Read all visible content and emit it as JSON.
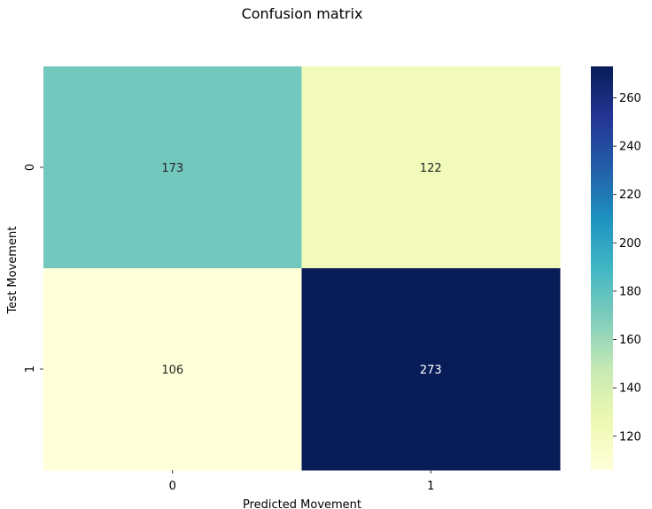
{
  "chart_data": {
    "type": "heatmap",
    "title": "Confusion matrix",
    "xlabel": "Predicted Movement",
    "ylabel": "Test Movement",
    "x_categories": [
      "0",
      "1"
    ],
    "y_categories": [
      "0",
      "1"
    ],
    "values": [
      [
        173,
        122
      ],
      [
        106,
        273
      ]
    ],
    "colormap": "YlGnBu",
    "annotate": true,
    "colorbar": {
      "range": [
        106,
        273
      ],
      "ticks": [
        120,
        140,
        160,
        180,
        200,
        220,
        240,
        260
      ],
      "tick_labels": [
        "120",
        "140",
        "160",
        "180",
        "200",
        "220",
        "240",
        "260"
      ]
    }
  }
}
